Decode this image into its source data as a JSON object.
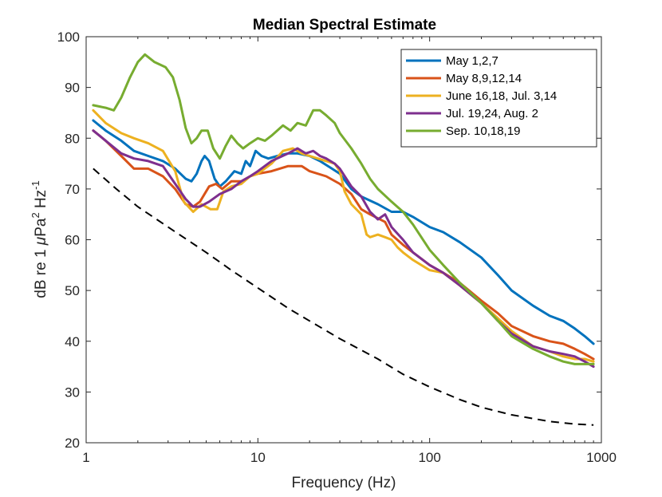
{
  "chart_data": {
    "type": "line",
    "title": "Median Spectral Estimate",
    "xlabel": "Frequency (Hz)",
    "ylabel": {
      "pre": "dB re 1 ",
      "mu": "μ",
      "mid": "Pa",
      "sup1": "2",
      "mid2": " Hz",
      "sup2": "-1"
    },
    "xscale": "log",
    "xlim": [
      1,
      1000
    ],
    "ylim": [
      20,
      100
    ],
    "xticks": [
      1,
      10,
      100,
      1000
    ],
    "xtick_labels": [
      "1",
      "10",
      "100",
      "1000"
    ],
    "yticks": [
      20,
      30,
      40,
      50,
      60,
      70,
      80,
      90,
      100
    ],
    "ytick_labels": [
      "20",
      "30",
      "40",
      "50",
      "60",
      "70",
      "80",
      "90",
      "100"
    ],
    "grid": false,
    "legend_position": "top-right",
    "series": [
      {
        "name": "May 1,2,7",
        "color": "#0072BD",
        "points": [
          [
            1.1,
            83.5
          ],
          [
            1.3,
            81.5
          ],
          [
            1.6,
            79.5
          ],
          [
            1.9,
            77.5
          ],
          [
            2.3,
            76.5
          ],
          [
            2.8,
            75.5
          ],
          [
            3.3,
            74
          ],
          [
            3.8,
            72
          ],
          [
            4.1,
            71.5
          ],
          [
            4.4,
            73
          ],
          [
            4.7,
            75.5
          ],
          [
            4.9,
            76.5
          ],
          [
            5.2,
            75.5
          ],
          [
            5.6,
            72
          ],
          [
            6,
            70.5
          ],
          [
            6.5,
            71.5
          ],
          [
            7.3,
            73.5
          ],
          [
            8,
            73
          ],
          [
            8.5,
            75.5
          ],
          [
            9,
            74.5
          ],
          [
            9.7,
            77.5
          ],
          [
            10.5,
            76.5
          ],
          [
            11.5,
            76
          ],
          [
            13,
            76.5
          ],
          [
            15,
            77
          ],
          [
            17,
            77
          ],
          [
            20,
            76.5
          ],
          [
            23,
            75.5
          ],
          [
            27,
            74
          ],
          [
            30,
            73
          ],
          [
            35,
            70
          ],
          [
            40,
            68.5
          ],
          [
            50,
            67
          ],
          [
            60,
            65.5
          ],
          [
            70,
            65.5
          ],
          [
            80,
            64.5
          ],
          [
            100,
            62.5
          ],
          [
            120,
            61.5
          ],
          [
            150,
            59.5
          ],
          [
            200,
            56.5
          ],
          [
            250,
            53
          ],
          [
            300,
            50
          ],
          [
            400,
            47
          ],
          [
            500,
            45
          ],
          [
            600,
            44
          ],
          [
            700,
            42.5
          ],
          [
            800,
            41
          ],
          [
            900,
            39.5
          ]
        ]
      },
      {
        "name": "May 8,9,12,14",
        "color": "#D95319",
        "points": [
          [
            1.1,
            81.5
          ],
          [
            1.3,
            79.5
          ],
          [
            1.6,
            76.5
          ],
          [
            1.9,
            74
          ],
          [
            2.3,
            74
          ],
          [
            2.8,
            72.5
          ],
          [
            3.3,
            70
          ],
          [
            3.8,
            67
          ],
          [
            4.2,
            66.5
          ],
          [
            4.6,
            67.5
          ],
          [
            5.2,
            70.5
          ],
          [
            5.7,
            71
          ],
          [
            6.2,
            70
          ],
          [
            7,
            71.5
          ],
          [
            8,
            71.5
          ],
          [
            9,
            72.5
          ],
          [
            10,
            73
          ],
          [
            12,
            73.5
          ],
          [
            15,
            74.5
          ],
          [
            18,
            74.5
          ],
          [
            20,
            73.5
          ],
          [
            25,
            72.5
          ],
          [
            30,
            71
          ],
          [
            35,
            69
          ],
          [
            40,
            66
          ],
          [
            45,
            65
          ],
          [
            55,
            63.5
          ],
          [
            60,
            61
          ],
          [
            70,
            59
          ],
          [
            80,
            57.5
          ],
          [
            100,
            55
          ],
          [
            120,
            53.5
          ],
          [
            150,
            51.5
          ],
          [
            200,
            48
          ],
          [
            250,
            45.5
          ],
          [
            300,
            43
          ],
          [
            400,
            41
          ],
          [
            500,
            40
          ],
          [
            600,
            39.5
          ],
          [
            700,
            38.5
          ],
          [
            800,
            37.5
          ],
          [
            900,
            36.5
          ]
        ]
      },
      {
        "name": "June 16,18, Jul. 3,14",
        "color": "#EDB120",
        "points": [
          [
            1.1,
            85.5
          ],
          [
            1.3,
            83
          ],
          [
            1.6,
            81
          ],
          [
            1.9,
            80
          ],
          [
            2.3,
            79
          ],
          [
            2.8,
            77.5
          ],
          [
            3.3,
            73.5
          ],
          [
            3.7,
            67.5
          ],
          [
            4.2,
            65.5
          ],
          [
            4.7,
            67
          ],
          [
            5.3,
            66
          ],
          [
            5.8,
            66
          ],
          [
            6.3,
            69.5
          ],
          [
            7,
            70.5
          ],
          [
            8,
            71
          ],
          [
            9,
            72.5
          ],
          [
            10,
            73
          ],
          [
            12,
            75
          ],
          [
            14,
            77.5
          ],
          [
            16,
            78
          ],
          [
            18,
            77
          ],
          [
            20,
            76.5
          ],
          [
            25,
            75.5
          ],
          [
            28,
            75
          ],
          [
            30,
            73.5
          ],
          [
            32,
            69.5
          ],
          [
            35,
            67
          ],
          [
            40,
            65
          ],
          [
            43,
            61
          ],
          [
            45,
            60.5
          ],
          [
            50,
            61
          ],
          [
            55,
            60.5
          ],
          [
            60,
            60
          ],
          [
            65,
            58.5
          ],
          [
            70,
            57.5
          ],
          [
            80,
            56
          ],
          [
            100,
            54
          ],
          [
            120,
            53.5
          ],
          [
            150,
            51
          ],
          [
            200,
            47.5
          ],
          [
            250,
            44.5
          ],
          [
            300,
            42
          ],
          [
            400,
            39
          ],
          [
            500,
            38
          ],
          [
            600,
            37
          ],
          [
            700,
            36.5
          ],
          [
            800,
            36.5
          ],
          [
            900,
            36
          ]
        ]
      },
      {
        "name": "Jul. 19,24, Aug. 2",
        "color": "#7E2F8E",
        "points": [
          [
            1.1,
            81.5
          ],
          [
            1.3,
            79.5
          ],
          [
            1.6,
            77
          ],
          [
            1.9,
            76
          ],
          [
            2.3,
            75.5
          ],
          [
            2.8,
            74.5
          ],
          [
            3.3,
            71
          ],
          [
            3.8,
            68
          ],
          [
            4.2,
            66.5
          ],
          [
            4.6,
            66.5
          ],
          [
            5.2,
            67.5
          ],
          [
            6,
            69
          ],
          [
            7,
            70
          ],
          [
            8,
            71.5
          ],
          [
            9,
            72.5
          ],
          [
            10,
            73.5
          ],
          [
            12,
            75.5
          ],
          [
            15,
            77
          ],
          [
            17,
            78
          ],
          [
            19,
            77
          ],
          [
            21,
            77.5
          ],
          [
            23,
            76.5
          ],
          [
            25,
            76
          ],
          [
            28,
            75
          ],
          [
            30,
            74
          ],
          [
            35,
            70.5
          ],
          [
            40,
            68.5
          ],
          [
            45,
            65.5
          ],
          [
            50,
            64
          ],
          [
            55,
            65
          ],
          [
            60,
            62.5
          ],
          [
            70,
            60
          ],
          [
            80,
            57.5
          ],
          [
            100,
            55
          ],
          [
            120,
            53.5
          ],
          [
            150,
            51
          ],
          [
            200,
            47.5
          ],
          [
            250,
            44
          ],
          [
            300,
            41.5
          ],
          [
            400,
            39
          ],
          [
            500,
            38
          ],
          [
            600,
            37.5
          ],
          [
            700,
            37
          ],
          [
            800,
            36
          ],
          [
            900,
            35
          ]
        ]
      },
      {
        "name": "Sep. 10,18,19",
        "color": "#77AC30",
        "points": [
          [
            1.1,
            86.5
          ],
          [
            1.3,
            86
          ],
          [
            1.45,
            85.5
          ],
          [
            1.6,
            88
          ],
          [
            1.8,
            92
          ],
          [
            2,
            95
          ],
          [
            2.2,
            96.5
          ],
          [
            2.5,
            95
          ],
          [
            2.9,
            94
          ],
          [
            3.2,
            92
          ],
          [
            3.5,
            87.5
          ],
          [
            3.8,
            82
          ],
          [
            4.1,
            79
          ],
          [
            4.4,
            80
          ],
          [
            4.7,
            81.5
          ],
          [
            5.1,
            81.5
          ],
          [
            5.5,
            78
          ],
          [
            6,
            76
          ],
          [
            6.5,
            78.5
          ],
          [
            7,
            80.5
          ],
          [
            7.6,
            79
          ],
          [
            8.2,
            78
          ],
          [
            9,
            79
          ],
          [
            10,
            80
          ],
          [
            11,
            79.5
          ],
          [
            12,
            80.5
          ],
          [
            14,
            82.5
          ],
          [
            15.5,
            81.5
          ],
          [
            17,
            83
          ],
          [
            19,
            82.5
          ],
          [
            21,
            85.5
          ],
          [
            23,
            85.5
          ],
          [
            25,
            84.5
          ],
          [
            28,
            83
          ],
          [
            30,
            81
          ],
          [
            35,
            78
          ],
          [
            40,
            75
          ],
          [
            45,
            72
          ],
          [
            50,
            70
          ],
          [
            60,
            67.5
          ],
          [
            70,
            65.5
          ],
          [
            80,
            63
          ],
          [
            100,
            58
          ],
          [
            120,
            55
          ],
          [
            150,
            51.5
          ],
          [
            200,
            47.5
          ],
          [
            250,
            44
          ],
          [
            300,
            41
          ],
          [
            400,
            38.5
          ],
          [
            500,
            37
          ],
          [
            600,
            36
          ],
          [
            700,
            35.5
          ],
          [
            800,
            35.5
          ],
          [
            900,
            35.5
          ]
        ]
      },
      {
        "name": "reference-dashed",
        "color": "#000000",
        "points": [
          [
            1.1,
            74
          ],
          [
            1.5,
            70
          ],
          [
            2,
            66.5
          ],
          [
            3,
            62.5
          ],
          [
            5,
            57.5
          ],
          [
            7,
            54
          ],
          [
            10,
            50.5
          ],
          [
            15,
            46.5
          ],
          [
            20,
            44
          ],
          [
            30,
            40.5
          ],
          [
            50,
            36.5
          ],
          [
            70,
            33.5
          ],
          [
            100,
            31
          ],
          [
            150,
            28.5
          ],
          [
            200,
            27
          ],
          [
            300,
            25.5
          ],
          [
            500,
            24.2
          ],
          [
            700,
            23.7
          ],
          [
            900,
            23.5
          ]
        ]
      }
    ]
  }
}
